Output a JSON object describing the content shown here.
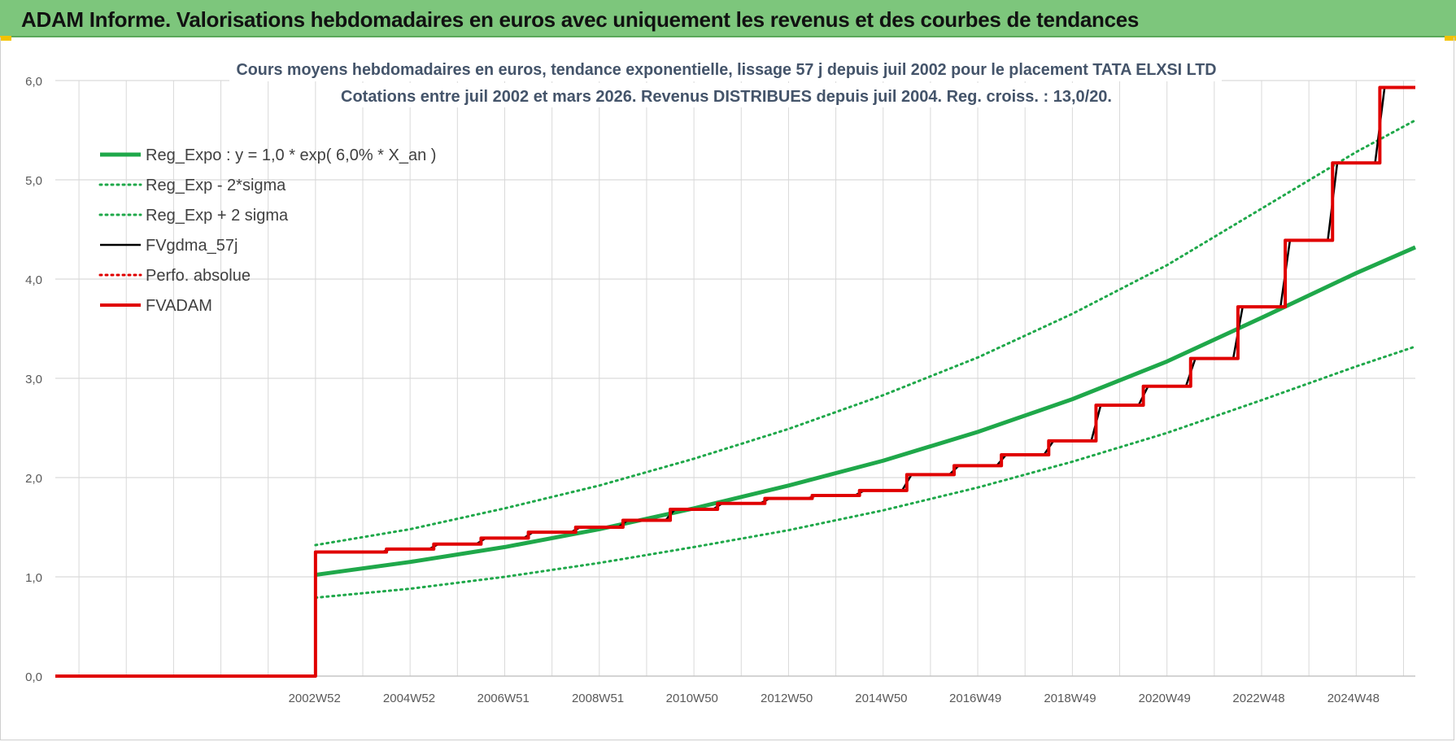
{
  "header": {
    "title": "ADAM Informe. Valorisations hebdomadaires en euros avec uniquement les revenus et des courbes de tendances"
  },
  "colors": {
    "header_bg": "#7dc67c",
    "trend_green": "#1fa84a",
    "price_black": "#000000",
    "adam_red": "#e00000",
    "grid": "#d9d9d9"
  },
  "chart_data": {
    "type": "line",
    "title": [
      "Cours moyens hebdomadaires en euros, tendance exponentielle, lissage 57 j depuis juil 2002 pour le placement TATA ELXSI LTD",
      "Cotations entre juil 2002 et mars 2026. Revenus DISTRIBUES depuis juil 2004. Reg. croiss. : 13,0/20."
    ],
    "xlabel": "",
    "ylabel": "",
    "ylim": [
      0,
      6
    ],
    "yticks": [
      "0,0",
      "1,0",
      "2,0",
      "3,0",
      "4,0",
      "5,0",
      "6,0"
    ],
    "xlim": [
      1997.5,
      2026.25
    ],
    "xtick_labels": [
      {
        "label": "2002W52",
        "x": 2002.98
      },
      {
        "label": "2004W52",
        "x": 2004.98
      },
      {
        "label": "2006W51",
        "x": 2006.97
      },
      {
        "label": "2008W51",
        "x": 2008.97
      },
      {
        "label": "2010W50",
        "x": 2010.96
      },
      {
        "label": "2012W50",
        "x": 2012.96
      },
      {
        "label": "2014W50",
        "x": 2014.96
      },
      {
        "label": "2016W49",
        "x": 2016.95
      },
      {
        "label": "2018W49",
        "x": 2018.95
      },
      {
        "label": "2020W49",
        "x": 2020.95
      },
      {
        "label": "2022W48",
        "x": 2022.94
      },
      {
        "label": "2024W48",
        "x": 2024.94
      }
    ],
    "grid": true,
    "legend_position": "top-left",
    "series": [
      {
        "name": "Reg_Expo : y = 1,0 * exp( 6,0% *  X_an )",
        "style": "solid-thick",
        "color": "#1fa84a",
        "x": [
          2003.0,
          2005.0,
          2007.0,
          2009.0,
          2011.0,
          2013.0,
          2015.0,
          2017.0,
          2019.0,
          2021.0,
          2023.0,
          2025.0,
          2026.25
        ],
        "y": [
          1.02,
          1.15,
          1.3,
          1.48,
          1.69,
          1.92,
          2.17,
          2.46,
          2.79,
          3.17,
          3.61,
          4.06,
          4.32
        ]
      },
      {
        "name": "Reg_Exp - 2*sigma",
        "style": "dotted",
        "color": "#1fa84a",
        "x": [
          2003.0,
          2005.0,
          2007.0,
          2009.0,
          2011.0,
          2013.0,
          2015.0,
          2017.0,
          2019.0,
          2021.0,
          2023.0,
          2025.0,
          2026.25
        ],
        "y": [
          0.79,
          0.88,
          1.0,
          1.14,
          1.3,
          1.47,
          1.67,
          1.9,
          2.16,
          2.45,
          2.78,
          3.12,
          3.32
        ]
      },
      {
        "name": "Reg_Exp + 2 sigma",
        "style": "dotted",
        "color": "#1fa84a",
        "x": [
          2003.0,
          2005.0,
          2007.0,
          2009.0,
          2011.0,
          2013.0,
          2015.0,
          2017.0,
          2019.0,
          2021.0,
          2023.0,
          2025.0,
          2026.25
        ],
        "y": [
          1.32,
          1.48,
          1.69,
          1.92,
          2.19,
          2.49,
          2.83,
          3.21,
          3.65,
          4.14,
          4.71,
          5.28,
          5.6
        ]
      },
      {
        "name": "FVgdma_57j",
        "style": "solid",
        "color": "#000000",
        "x": [
          1997.5,
          2002.99,
          2003.0,
          2004.4,
          2004.6,
          2005.4,
          2005.6,
          2006.4,
          2006.6,
          2007.4,
          2007.6,
          2008.4,
          2008.6,
          2009.4,
          2009.6,
          2010.4,
          2010.6,
          2011.4,
          2011.6,
          2012.4,
          2012.6,
          2013.4,
          2013.6,
          2014.4,
          2014.6,
          2015.4,
          2015.6,
          2016.4,
          2016.6,
          2017.4,
          2017.6,
          2018.4,
          2018.6,
          2019.4,
          2019.6,
          2020.4,
          2020.6,
          2021.4,
          2021.6,
          2022.4,
          2022.6,
          2023.4,
          2023.6,
          2024.4,
          2024.6,
          2025.4,
          2025.6,
          2026.25
        ],
        "y": [
          0.0,
          0.0,
          1.25,
          1.25,
          1.28,
          1.28,
          1.33,
          1.33,
          1.39,
          1.39,
          1.45,
          1.45,
          1.5,
          1.5,
          1.57,
          1.57,
          1.68,
          1.68,
          1.74,
          1.74,
          1.79,
          1.79,
          1.82,
          1.82,
          1.87,
          1.87,
          2.03,
          2.03,
          2.12,
          2.12,
          2.23,
          2.23,
          2.37,
          2.37,
          2.73,
          2.73,
          2.92,
          2.92,
          3.2,
          3.2,
          3.72,
          3.72,
          4.39,
          4.39,
          5.17,
          5.17,
          5.93,
          5.93
        ]
      },
      {
        "name": "Perfo. absolue",
        "style": "dotted",
        "color": "#e00000",
        "x": [],
        "y": []
      },
      {
        "name": "FVADAM",
        "style": "step-thick",
        "color": "#e00000",
        "x": [
          1997.5,
          2003.0,
          2004.5,
          2005.5,
          2006.5,
          2007.5,
          2008.5,
          2009.5,
          2010.5,
          2011.5,
          2012.5,
          2013.5,
          2014.5,
          2015.5,
          2016.5,
          2017.5,
          2018.5,
          2019.5,
          2020.5,
          2021.5,
          2022.5,
          2023.5,
          2024.5,
          2025.5,
          2026.25
        ],
        "y": [
          0.0,
          1.25,
          1.28,
          1.33,
          1.39,
          1.45,
          1.5,
          1.57,
          1.68,
          1.74,
          1.79,
          1.82,
          1.87,
          2.03,
          2.12,
          2.23,
          2.37,
          2.73,
          2.92,
          3.2,
          3.72,
          4.39,
          5.17,
          5.93,
          5.93
        ]
      }
    ]
  }
}
